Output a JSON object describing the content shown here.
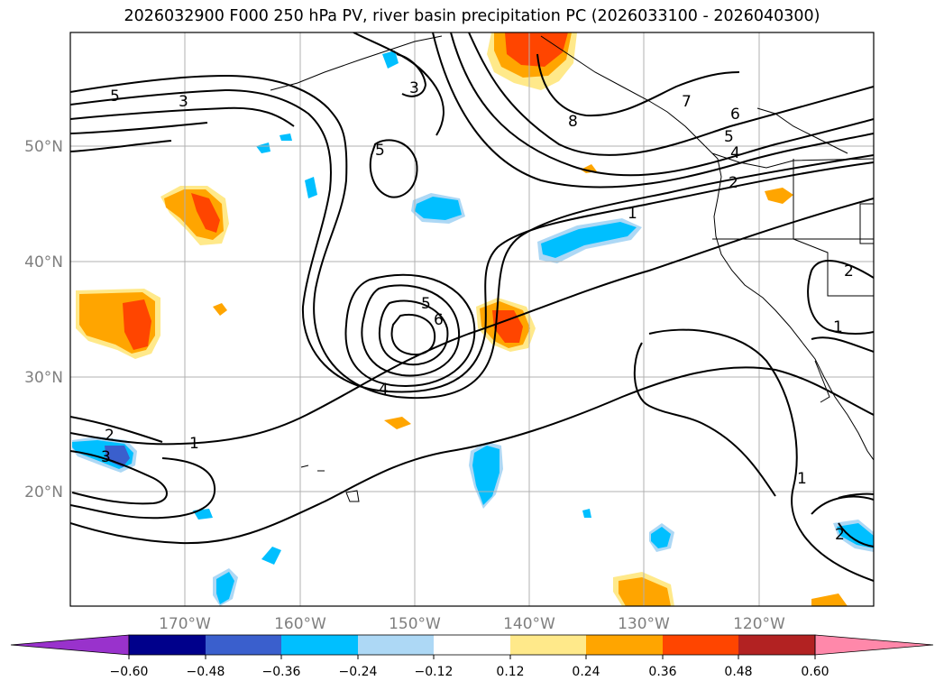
{
  "title": "2026032900 F000 250 hPa PV, river basin precipitation PC (2026033100 - 2026040300)",
  "lat_labels": [
    "50°N",
    "40°N",
    "30°N",
    "20°N"
  ],
  "lon_labels": [
    "170°W",
    "160°W",
    "150°W",
    "140°W",
    "130°W",
    "120°W"
  ],
  "contour_labels": [
    "5",
    "3",
    "3",
    "5",
    "8",
    "7",
    "6",
    "5",
    "4",
    "2",
    "1",
    "5",
    "6",
    "4",
    "1",
    "2",
    "3",
    "1",
    "2",
    "1",
    "2"
  ],
  "colorbar": {
    "ticks": [
      "−0.60",
      "−0.48",
      "−0.36",
      "−0.24",
      "−0.12",
      "0.12",
      "0.24",
      "0.36",
      "0.48",
      "0.60"
    ],
    "colors": [
      "#9932cc",
      "#00008b",
      "#3a5fcd",
      "#00bfff",
      "#add8f5",
      "#ffffff",
      "#ffe98a",
      "#ffa500",
      "#ff4500",
      "#b22222",
      "#ff88aa"
    ]
  }
}
